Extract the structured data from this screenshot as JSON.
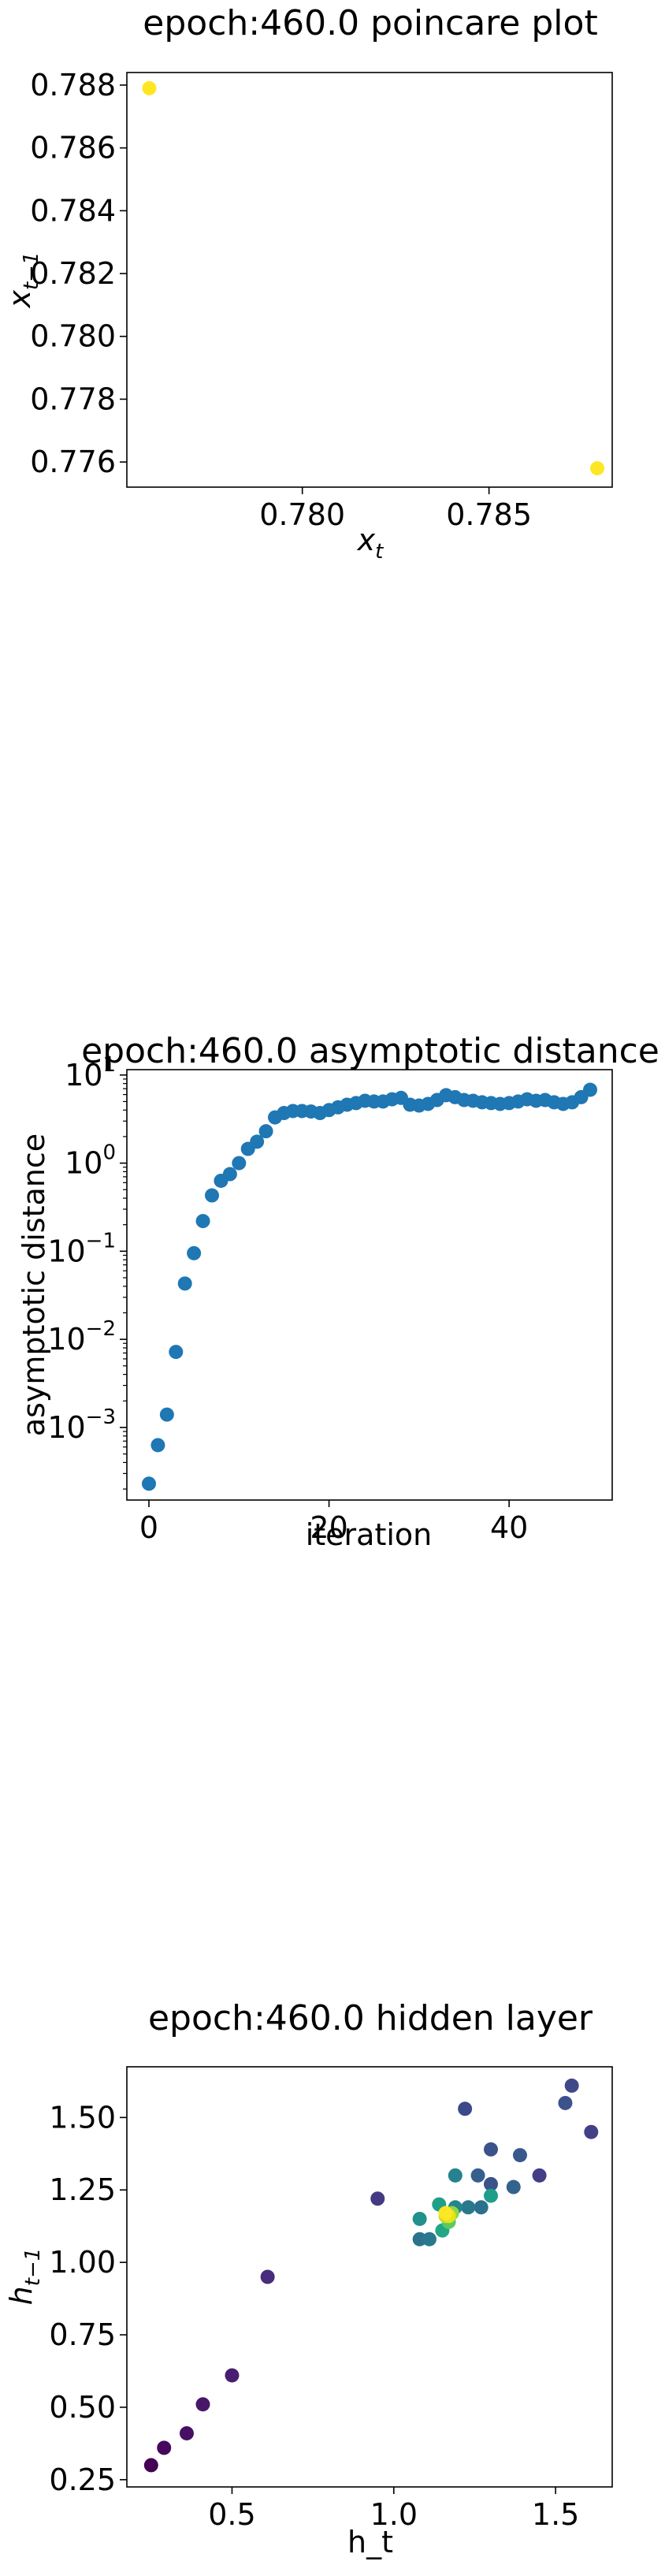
{
  "chart_data": [
    {
      "type": "scatter",
      "title": "epoch:460.0 poincare plot",
      "xlabel": "x",
      "xlabel_sub": "t",
      "ylabel": "x",
      "ylabel_sub": "t−1",
      "xlim": [
        0.7753,
        0.7883
      ],
      "ylim": [
        0.7752,
        0.7884
      ],
      "xticks": [
        0.78,
        0.785
      ],
      "xtick_labels": [
        "0.780",
        "0.785"
      ],
      "yticks": [
        0.776,
        0.778,
        0.78,
        0.782,
        0.784,
        0.786,
        0.788
      ],
      "ytick_labels": [
        "0.776",
        "0.778",
        "0.780",
        "0.782",
        "0.784",
        "0.786",
        "0.788"
      ],
      "grid": false,
      "points": [
        {
          "x": 0.7759,
          "y": 0.7879,
          "color": "#fde725"
        },
        {
          "x": 0.7879,
          "y": 0.7758,
          "color": "#fde725"
        }
      ]
    },
    {
      "type": "scatter",
      "title": "epoch:460.0 asymptotic distance",
      "xlabel": "iteration",
      "ylabel": "asymptotic distance",
      "yscale": "log",
      "xlim": [
        -2.45,
        51.45
      ],
      "ylim": [
        0.00015,
        11.5
      ],
      "xticks": [
        0,
        20,
        40
      ],
      "xtick_labels": [
        "0",
        "20",
        "40"
      ],
      "yticks": [
        0.001,
        0.01,
        0.1,
        1,
        10
      ],
      "ytick_labels": [
        {
          "base": "10",
          "exp": "−3"
        },
        {
          "base": "10",
          "exp": "−2"
        },
        {
          "base": "10",
          "exp": "−1"
        },
        {
          "base": "10",
          "exp": "0"
        },
        {
          "base": "10",
          "exp": "1"
        }
      ],
      "grid": false,
      "color": "#1f77b4",
      "x": [
        0,
        1,
        2,
        3,
        4,
        5,
        6,
        7,
        8,
        9,
        10,
        11,
        12,
        13,
        14,
        15,
        16,
        17,
        18,
        19,
        20,
        21,
        22,
        23,
        24,
        25,
        26,
        27,
        28,
        29,
        30,
        31,
        32,
        33,
        34,
        35,
        36,
        37,
        38,
        39,
        40,
        41,
        42,
        43,
        44,
        45,
        46,
        47,
        48,
        49
      ],
      "y": [
        0.00023,
        0.00063,
        0.0014,
        0.0072,
        0.043,
        0.095,
        0.22,
        0.43,
        0.63,
        0.75,
        1.0,
        1.45,
        1.75,
        2.3,
        3.3,
        3.7,
        3.9,
        3.9,
        3.85,
        3.7,
        4.0,
        4.3,
        4.6,
        4.8,
        5.1,
        5.0,
        5.0,
        5.3,
        5.5,
        4.6,
        4.5,
        4.7,
        5.2,
        5.9,
        5.6,
        5.2,
        5.1,
        4.9,
        4.8,
        4.7,
        4.8,
        5.0,
        5.3,
        5.1,
        5.2,
        4.9,
        4.7,
        4.9,
        5.6,
        6.8
      ]
    },
    {
      "type": "scatter",
      "title": "epoch:460.0 hidden layer",
      "xlabel": "h_t",
      "ylabel": "h",
      "ylabel_sub": "t−1",
      "xlim": [
        0.175,
        1.675
      ],
      "ylim": [
        0.225,
        1.675
      ],
      "xticks": [
        0.5,
        1.0,
        1.5
      ],
      "xtick_labels": [
        "0.5",
        "1.0",
        "1.5"
      ],
      "yticks": [
        0.25,
        0.5,
        0.75,
        1.0,
        1.25,
        1.5
      ],
      "ytick_labels": [
        "0.25",
        "0.50",
        "0.75",
        "1.00",
        "1.25",
        "1.50"
      ],
      "grid": false,
      "points": [
        {
          "x": 0.25,
          "y": 0.3,
          "color": "#440154"
        },
        {
          "x": 0.29,
          "y": 0.36,
          "color": "#46085c"
        },
        {
          "x": 0.36,
          "y": 0.41,
          "color": "#471063"
        },
        {
          "x": 0.41,
          "y": 0.51,
          "color": "#481769"
        },
        {
          "x": 0.5,
          "y": 0.61,
          "color": "#481f70"
        },
        {
          "x": 0.61,
          "y": 0.95,
          "color": "#472d7b"
        },
        {
          "x": 0.95,
          "y": 1.22,
          "color": "#443983"
        },
        {
          "x": 1.22,
          "y": 1.53,
          "color": "#3e4989"
        },
        {
          "x": 1.53,
          "y": 1.55,
          "color": "#3b528b"
        },
        {
          "x": 1.55,
          "y": 1.61,
          "color": "#3f4889"
        },
        {
          "x": 1.61,
          "y": 1.45,
          "color": "#424086"
        },
        {
          "x": 1.45,
          "y": 1.3,
          "color": "#433e85"
        },
        {
          "x": 1.3,
          "y": 1.39,
          "color": "#3b528b"
        },
        {
          "x": 1.39,
          "y": 1.37,
          "color": "#38598c"
        },
        {
          "x": 1.37,
          "y": 1.26,
          "color": "#33638d"
        },
        {
          "x": 1.26,
          "y": 1.3,
          "color": "#355f8d"
        },
        {
          "x": 1.3,
          "y": 1.27,
          "color": "#3b528b"
        },
        {
          "x": 1.27,
          "y": 1.19,
          "color": "#2d708e"
        },
        {
          "x": 1.19,
          "y": 1.3,
          "color": "#26828e"
        },
        {
          "x": 1.3,
          "y": 1.23,
          "color": "#1f9e89"
        },
        {
          "x": 1.23,
          "y": 1.19,
          "color": "#2a788e"
        },
        {
          "x": 1.19,
          "y": 1.19,
          "color": "#25858e"
        },
        {
          "x": 1.08,
          "y": 1.08,
          "color": "#2c728e"
        },
        {
          "x": 1.11,
          "y": 1.08,
          "color": "#2a788e"
        },
        {
          "x": 1.08,
          "y": 1.15,
          "color": "#21918c"
        },
        {
          "x": 1.15,
          "y": 1.11,
          "color": "#22a785"
        },
        {
          "x": 1.14,
          "y": 1.2,
          "color": "#1f9f88"
        },
        {
          "x": 1.17,
          "y": 1.14,
          "color": "#5ec962"
        },
        {
          "x": 1.18,
          "y": 1.17,
          "color": "#8fd744"
        },
        {
          "x": 1.16,
          "y": 1.16,
          "color": "#bddf26"
        },
        {
          "x": 1.17,
          "y": 1.16,
          "color": "#e5e419"
        },
        {
          "x": 1.16,
          "y": 1.17,
          "color": "#fde725"
        }
      ]
    }
  ]
}
